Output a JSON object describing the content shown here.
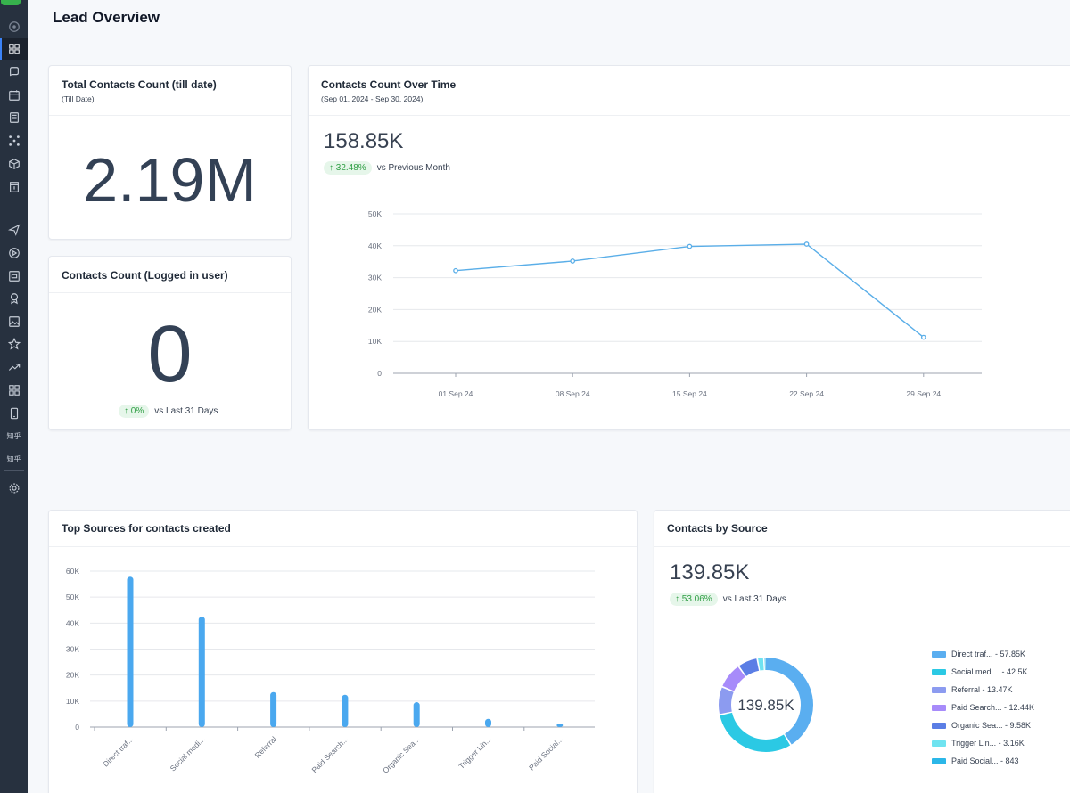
{
  "page": {
    "title": "Lead Overview"
  },
  "sidebar": {
    "icons": [
      {
        "name": "logo-icon"
      },
      {
        "name": "dashboard-icon"
      },
      {
        "name": "chat-icon"
      },
      {
        "name": "calendar-icon"
      },
      {
        "name": "contacts-book-icon"
      },
      {
        "name": "workflow-icon"
      },
      {
        "name": "box-icon"
      },
      {
        "name": "document-icon"
      },
      {
        "name": "send-icon"
      },
      {
        "name": "play-icon"
      },
      {
        "name": "form-icon"
      },
      {
        "name": "badge-icon"
      },
      {
        "name": "image-icon"
      },
      {
        "name": "star-icon"
      },
      {
        "name": "trend-icon"
      },
      {
        "name": "apps-grid-icon"
      },
      {
        "name": "mobile-icon"
      },
      {
        "name": "zhihu-text-1"
      },
      {
        "name": "zhihu-text-2"
      },
      {
        "name": "settings-icon"
      }
    ],
    "text_items": [
      "知乎",
      "知乎"
    ]
  },
  "total_contacts": {
    "title": "Total Contacts Count (till date)",
    "subtitle": "(Till Date)",
    "value": "2.19M"
  },
  "logged_in_contacts": {
    "title": "Contacts Count (Logged in user)",
    "value": "0",
    "trend": "↑ 0%",
    "trend_caption": "vs Last 31 Days"
  },
  "contacts_over_time": {
    "title": "Contacts Count Over Time",
    "subtitle": "(Sep 01, 2024 - Sep 30, 2024)",
    "value": "158.85K",
    "trend": "↑ 32.48%",
    "trend_caption": "vs Previous Month"
  },
  "top_sources": {
    "title": "Top Sources for contacts created"
  },
  "contacts_by_source": {
    "title": "Contacts by Source",
    "value": "139.85K",
    "trend": "↑ 53.06%",
    "trend_caption": "vs Last 31 Days",
    "center_label": "139.85K"
  },
  "chart_data": [
    {
      "type": "line",
      "x": [
        "01 Sep 24",
        "08 Sep 24",
        "15 Sep 24",
        "22 Sep 24",
        "29 Sep 24"
      ],
      "values": [
        32200,
        35200,
        39800,
        40500,
        11300
      ],
      "yticks": [
        "0",
        "10K",
        "20K",
        "30K",
        "40K",
        "50K"
      ],
      "ylim": [
        0,
        50000
      ],
      "color": "#5aaee8",
      "grid": true
    },
    {
      "type": "bar",
      "categories": [
        "Direct traf...",
        "Social medi...",
        "Referral",
        "Paid Search...",
        "Organic Sea...",
        "Trigger Lin...",
        "Paid Social..."
      ],
      "values": [
        57850,
        42500,
        13470,
        12440,
        9580,
        3160,
        843
      ],
      "yticks": [
        "0",
        "10K",
        "20K",
        "30K",
        "40K",
        "50K",
        "60K"
      ],
      "ylim": [
        0,
        60000
      ],
      "color": "#4aa8ef",
      "grid": true
    },
    {
      "type": "pie",
      "labels": [
        "Direct traf... - 57.85K",
        "Social medi... - 42.5K",
        "Referral - 13.47K",
        "Paid Search... - 12.44K",
        "Organic Sea... - 9.58K",
        "Trigger Lin... - 3.16K",
        "Paid Social... - 843"
      ],
      "values": [
        57850,
        42500,
        13470,
        12440,
        9580,
        3160,
        843
      ],
      "colors": [
        "#5aaef0",
        "#2bc9e4",
        "#8c9bf0",
        "#a78bfa",
        "#5b7ee5",
        "#6fe3f0",
        "#2bb7e8"
      ],
      "legend": "right"
    }
  ]
}
